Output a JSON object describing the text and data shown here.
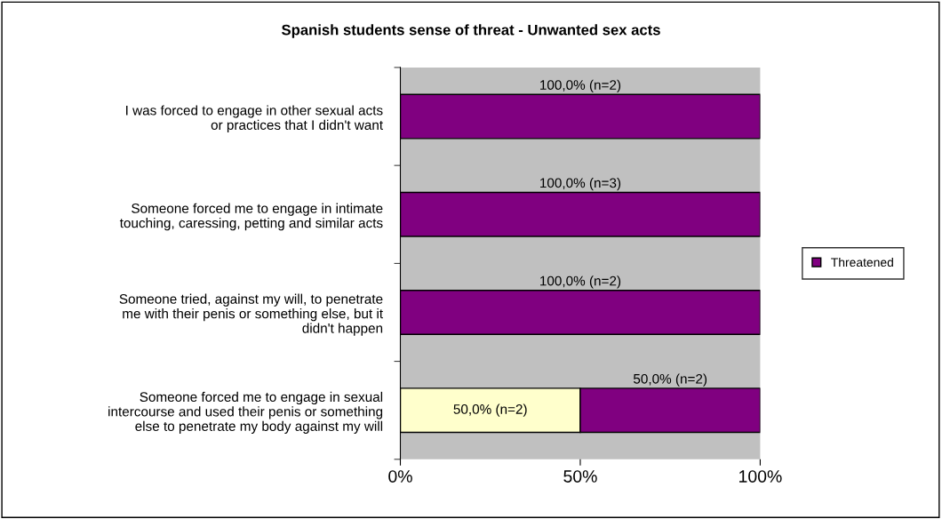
{
  "chart_data": {
    "type": "bar",
    "orientation": "horizontal",
    "stacked": true,
    "title": "Spanish students sense of threat - Unwanted sex acts",
    "categories": [
      "I was forced to engage in other sexual acts or practices that I didn't want",
      "Someone forced me to engage in intimate touching, caressing, petting and similar acts",
      "Someone tried, against my will, to penetrate me with their penis or something else, but it didn't happen",
      "Someone forced me to engage in sexual intercourse and used their penis or something else to penetrate my body against my will"
    ],
    "series": [
      {
        "color": "#ffffcc",
        "values": [
          0,
          0,
          0,
          50
        ],
        "value_labels": [
          null,
          null,
          null,
          "50,0% (n=2)"
        ]
      },
      {
        "name": "Threatened",
        "color": "#800080",
        "values": [
          100,
          100,
          100,
          50
        ],
        "value_labels": [
          "100,0% (n=2)",
          "100,0% (n=3)",
          "100,0% (n=2)",
          "50,0% (n=2)"
        ]
      }
    ],
    "xlim": [
      0,
      100
    ],
    "xticks": [
      {
        "value": 0,
        "label": "0%"
      },
      {
        "value": 50,
        "label": "50%"
      },
      {
        "value": 100,
        "label": "100%"
      }
    ],
    "grid": false,
    "legend": "right"
  }
}
